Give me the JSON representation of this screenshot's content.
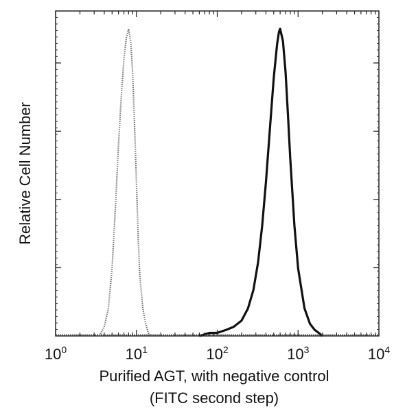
{
  "chart_data": {
    "type": "line",
    "title": "",
    "xlabel": "Purified AGT, with negative control",
    "xlabel_line2": "(FITC second step)",
    "ylabel": "Relative Cell Number",
    "x_scale": "log",
    "xlim": [
      1,
      10000
    ],
    "ylim": [
      0,
      1
    ],
    "grid": false,
    "legend": "none",
    "x_tick_labels": [
      {
        "base": "10",
        "exp": "0",
        "value": 1
      },
      {
        "base": "10",
        "exp": "1",
        "value": 10
      },
      {
        "base": "10",
        "exp": "2",
        "value": 100
      },
      {
        "base": "10",
        "exp": "3",
        "value": 1000
      },
      {
        "base": "10",
        "exp": "4",
        "value": 10000
      }
    ],
    "y_major_ticks": [
      0.21,
      0.42,
      0.63,
      0.84
    ],
    "series": [
      {
        "style": "dotted",
        "color": "#777777",
        "x": [
          3.5,
          4.0,
          4.5,
          5.0,
          5.5,
          6.0,
          6.5,
          7.0,
          7.5,
          8.0,
          8.5,
          9.0,
          9.5,
          10.0,
          10.5,
          11.0,
          12.0,
          13.0,
          14.0,
          15.0
        ],
        "y": [
          0.0,
          0.03,
          0.09,
          0.22,
          0.42,
          0.62,
          0.78,
          0.9,
          0.97,
          1.0,
          0.96,
          0.85,
          0.68,
          0.5,
          0.33,
          0.2,
          0.09,
          0.04,
          0.01,
          0.0
        ]
      },
      {
        "style": "solid",
        "color": "#111111",
        "x": [
          60,
          80,
          100,
          130,
          160,
          200,
          240,
          280,
          320,
          360,
          400,
          450,
          500,
          550,
          580,
          600,
          650,
          700,
          750,
          800,
          900,
          1000,
          1200,
          1400,
          1600,
          1800,
          2000
        ],
        "y": [
          0.0,
          0.01,
          0.01,
          0.02,
          0.03,
          0.05,
          0.09,
          0.15,
          0.24,
          0.36,
          0.5,
          0.68,
          0.84,
          0.95,
          0.99,
          1.0,
          0.96,
          0.86,
          0.72,
          0.58,
          0.36,
          0.22,
          0.09,
          0.04,
          0.02,
          0.01,
          0.0
        ]
      }
    ]
  }
}
